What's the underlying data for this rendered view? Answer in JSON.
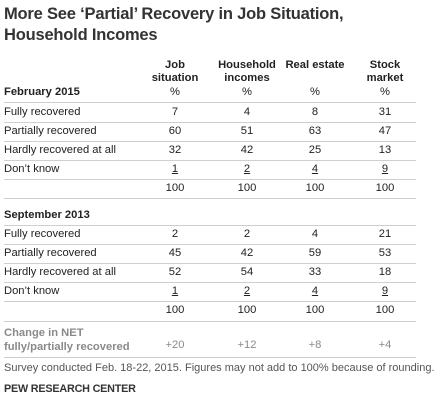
{
  "title": "More See ‘Partial’ Recovery in Job Situation, Household Incomes",
  "columns": [
    "Job situation",
    "Household incomes",
    "Real estate",
    "Stock market"
  ],
  "sections": [
    {
      "label": "February 2015",
      "pct": [
        "%",
        "%",
        "%",
        "%"
      ],
      "rows": [
        {
          "label": "Fully recovered",
          "values": [
            "7",
            "4",
            "8",
            "31"
          ]
        },
        {
          "label": "Partially recovered",
          "values": [
            "60",
            "51",
            "63",
            "47"
          ]
        },
        {
          "label": "Hardly recovered at all",
          "values": [
            "32",
            "42",
            "25",
            "13"
          ]
        },
        {
          "label": "Don’t know",
          "values": [
            "1",
            "2",
            "4",
            "9"
          ]
        }
      ],
      "totals": [
        "100",
        "100",
        "100",
        "100"
      ]
    },
    {
      "label": "September 2013",
      "rows": [
        {
          "label": "Fully recovered",
          "values": [
            "2",
            "2",
            "4",
            "21"
          ]
        },
        {
          "label": "Partially recovered",
          "values": [
            "45",
            "42",
            "59",
            "53"
          ]
        },
        {
          "label": "Hardly recovered at all",
          "values": [
            "52",
            "54",
            "33",
            "18"
          ]
        },
        {
          "label": "Don’t know",
          "values": [
            "1",
            "2",
            "4",
            "9"
          ]
        }
      ],
      "totals": [
        "100",
        "100",
        "100",
        "100"
      ]
    }
  ],
  "net_change": {
    "label_line1": "Change in NET",
    "label_line2": "fully/partially recovered",
    "values": [
      "+20",
      "+12",
      "+8",
      "+4"
    ]
  },
  "note": "Survey conducted Feb. 18-22, 2015. Figures may not add to 100% because of rounding.",
  "source": "PEW RESEARCH CENTER"
}
